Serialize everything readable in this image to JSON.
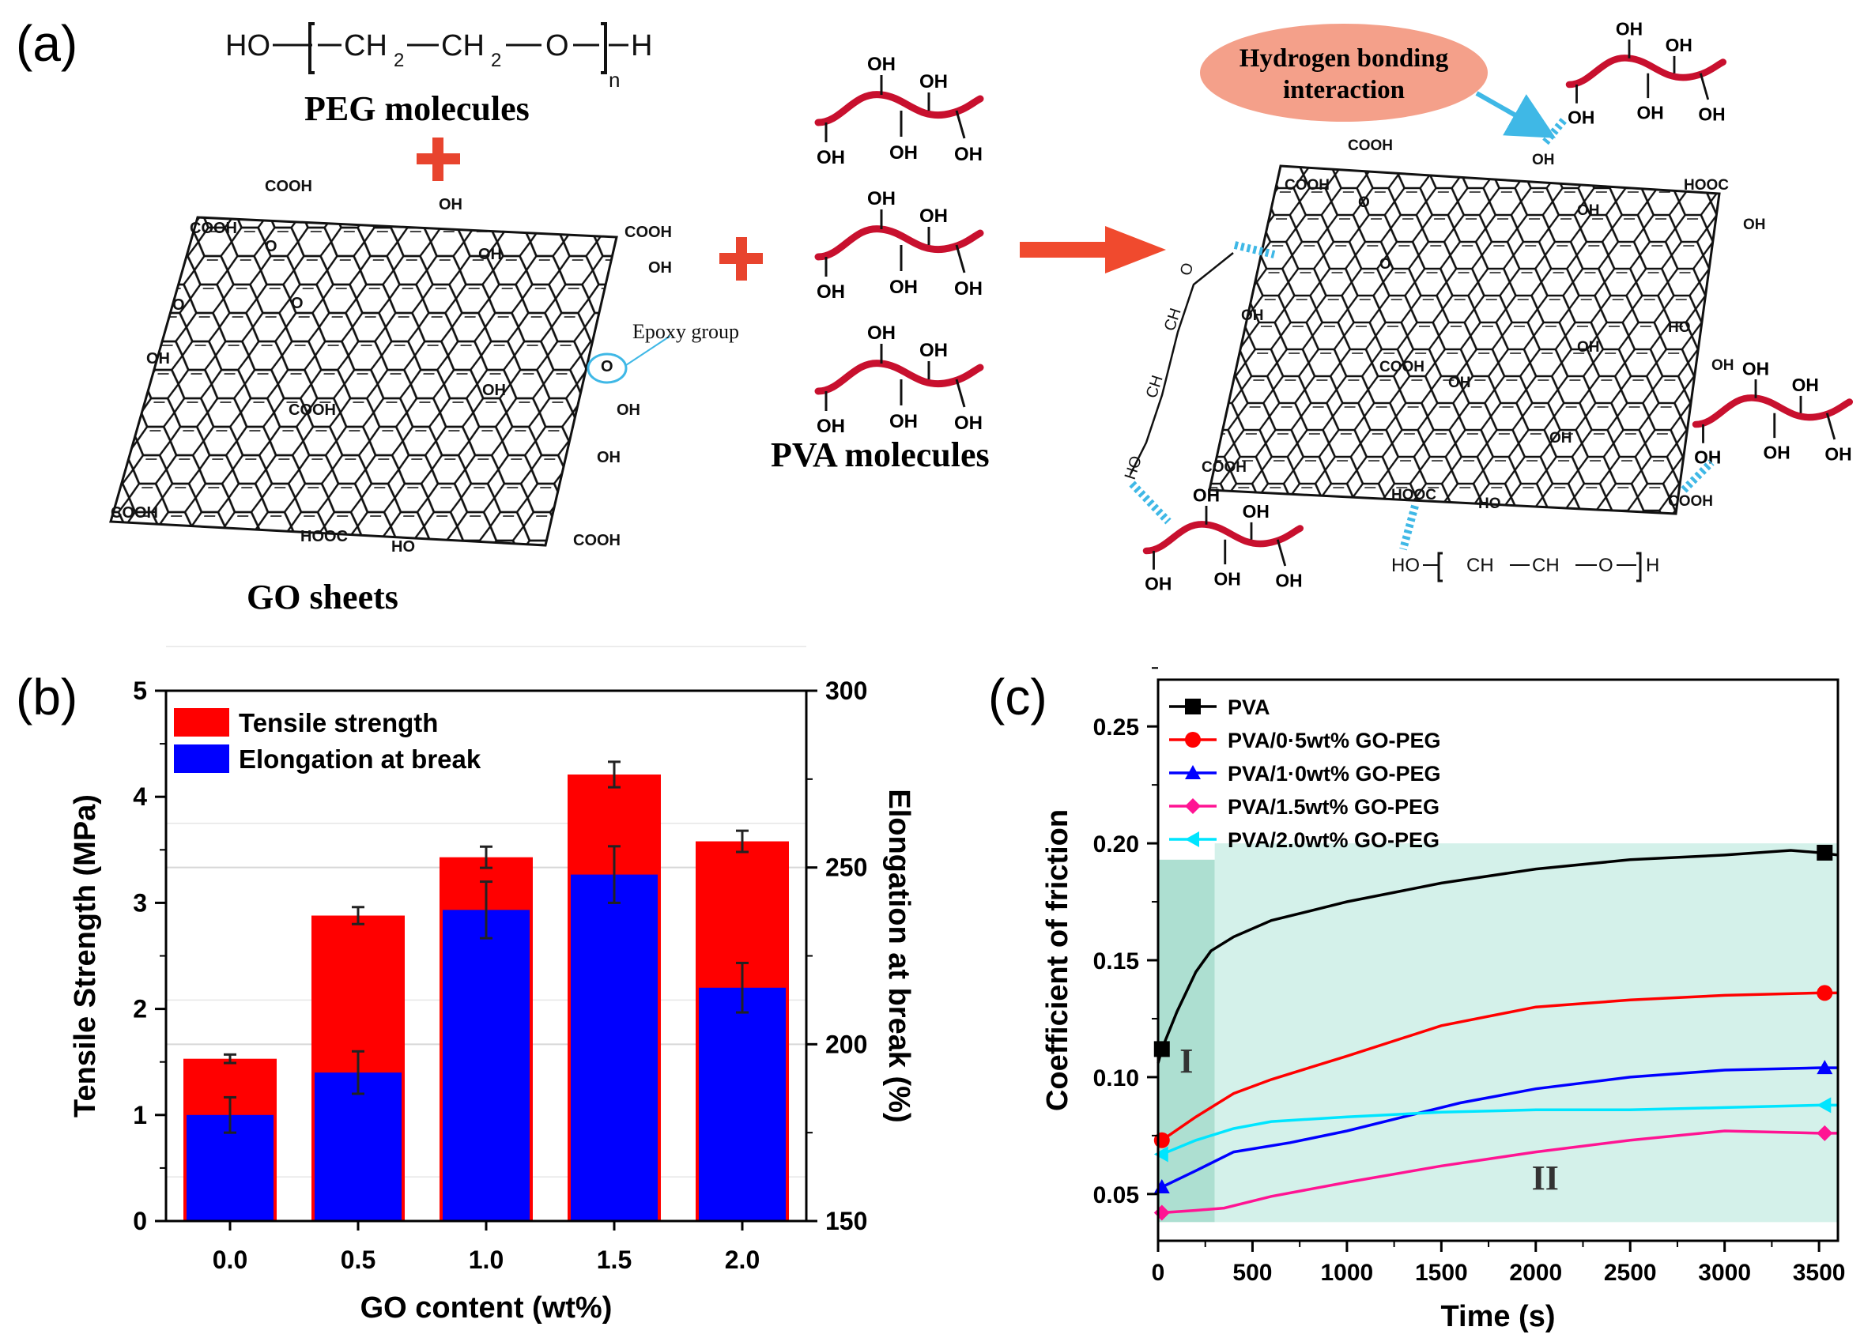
{
  "panel_a": {
    "label": "(a)",
    "peg_formula": {
      "ho": "HO",
      "ch2": "CH",
      "sub2": "2",
      "o": "O",
      "n": "n",
      "h": "H"
    },
    "peg_label": "PEG molecules",
    "go_label": "GO sheets",
    "pva_label": "PVA molecules",
    "epoxy_label": "Epoxy group",
    "hbond_label_line1": "Hydrogen bonding",
    "hbond_label_line2": "interaction",
    "groups": {
      "cooh": "COOH",
      "hooc": "HOOC",
      "oh": "OH",
      "ho": "HO",
      "o": "O"
    },
    "colors": {
      "plus": "#e8442e",
      "arrow": "#f04a2e",
      "pva_chain": "#c8102e",
      "hbond": "#3fb8e6",
      "bubble": "#f4a08a"
    }
  },
  "chart_data": [
    {
      "type": "bar",
      "label": "(b)",
      "categories": [
        "0.0",
        "0.5",
        "1.0",
        "1.5",
        "2.0"
      ],
      "xlabel": "GO content (wt%)",
      "ylabel": "Tensile Strength (MPa)",
      "y2label": "Elongation at break (%)",
      "ylim": [
        0,
        5
      ],
      "y2lim": [
        150,
        300
      ],
      "yticks": [
        "0",
        "1",
        "2",
        "3",
        "4",
        "5"
      ],
      "y2ticks": [
        "150",
        "200",
        "250",
        "300"
      ],
      "legend_position": "top-left",
      "series": [
        {
          "name": "Tensile strength",
          "axis": "left",
          "color": "#ff0000",
          "values": [
            1.53,
            2.88,
            3.43,
            4.21,
            3.58
          ],
          "errors": [
            0.04,
            0.08,
            0.1,
            0.12,
            0.1
          ]
        },
        {
          "name": "Elongation at break",
          "axis": "right",
          "color": "#0000ff",
          "values": [
            180,
            192,
            238,
            248,
            216
          ],
          "errors": [
            5,
            6,
            8,
            8,
            7
          ]
        }
      ]
    },
    {
      "type": "line",
      "label": "(c)",
      "xlabel": "Time (s)",
      "ylabel": "Coefficient of friction",
      "xlim": [
        0,
        3600
      ],
      "ylim": [
        0.03,
        0.27
      ],
      "xticks": [
        "0",
        "500",
        "1000",
        "1500",
        "2000",
        "2500",
        "3000",
        "3500"
      ],
      "yticks": [
        "0.05",
        "0.10",
        "0.15",
        "0.20",
        "0.25"
      ],
      "legend_position": "top-left",
      "regions": [
        {
          "label": "I",
          "x": [
            0,
            300
          ],
          "y": [
            0.038,
            0.193
          ],
          "color": "#9fd9c9"
        },
        {
          "label": "II",
          "x": [
            300,
            3600
          ],
          "y": [
            0.038,
            0.2
          ],
          "color": "#cdeee6"
        }
      ],
      "series": [
        {
          "name": "PVA",
          "color": "#000000",
          "marker": "square",
          "x": [
            0,
            20,
            100,
            200,
            280,
            400,
            600,
            800,
            1000,
            1500,
            2000,
            2500,
            3000,
            3350,
            3500,
            3600
          ],
          "y": [
            0.106,
            0.112,
            0.128,
            0.145,
            0.154,
            0.16,
            0.167,
            0.171,
            0.175,
            0.183,
            0.189,
            0.193,
            0.195,
            0.197,
            0.196,
            0.195
          ]
        },
        {
          "name": "PVA/0·5wt% GO-PEG",
          "color": "#ff0000",
          "marker": "circle",
          "x": [
            0,
            20,
            200,
            400,
            600,
            800,
            1000,
            1500,
            2000,
            2500,
            3000,
            3500,
            3600
          ],
          "y": [
            0.072,
            0.073,
            0.083,
            0.093,
            0.099,
            0.104,
            0.109,
            0.122,
            0.13,
            0.133,
            0.135,
            0.136,
            0.136
          ]
        },
        {
          "name": "PVA/1·0wt% GO-PEG",
          "color": "#0000ff",
          "marker": "triangle",
          "x": [
            0,
            20,
            200,
            400,
            700,
            1000,
            1300,
            1600,
            2000,
            2500,
            3000,
            3500,
            3600
          ],
          "y": [
            0.052,
            0.053,
            0.06,
            0.068,
            0.072,
            0.077,
            0.083,
            0.089,
            0.095,
            0.1,
            0.103,
            0.104,
            0.104
          ]
        },
        {
          "name": "PVA/1.5wt% GO-PEG",
          "color": "#ff1493",
          "marker": "diamond",
          "x": [
            0,
            20,
            200,
            350,
            600,
            1000,
            1500,
            2000,
            2500,
            3000,
            3500,
            3600
          ],
          "y": [
            0.041,
            0.042,
            0.043,
            0.044,
            0.049,
            0.055,
            0.062,
            0.068,
            0.073,
            0.077,
            0.076,
            0.076
          ]
        },
        {
          "name": "PVA/2.0wt% GO-PEG",
          "color": "#00e5ff",
          "marker": "left-triangle",
          "x": [
            0,
            20,
            200,
            400,
            600,
            1000,
            1500,
            2000,
            2500,
            3000,
            3500,
            3600
          ],
          "y": [
            0.066,
            0.067,
            0.073,
            0.078,
            0.081,
            0.083,
            0.085,
            0.086,
            0.086,
            0.087,
            0.088,
            0.088
          ]
        }
      ]
    }
  ]
}
